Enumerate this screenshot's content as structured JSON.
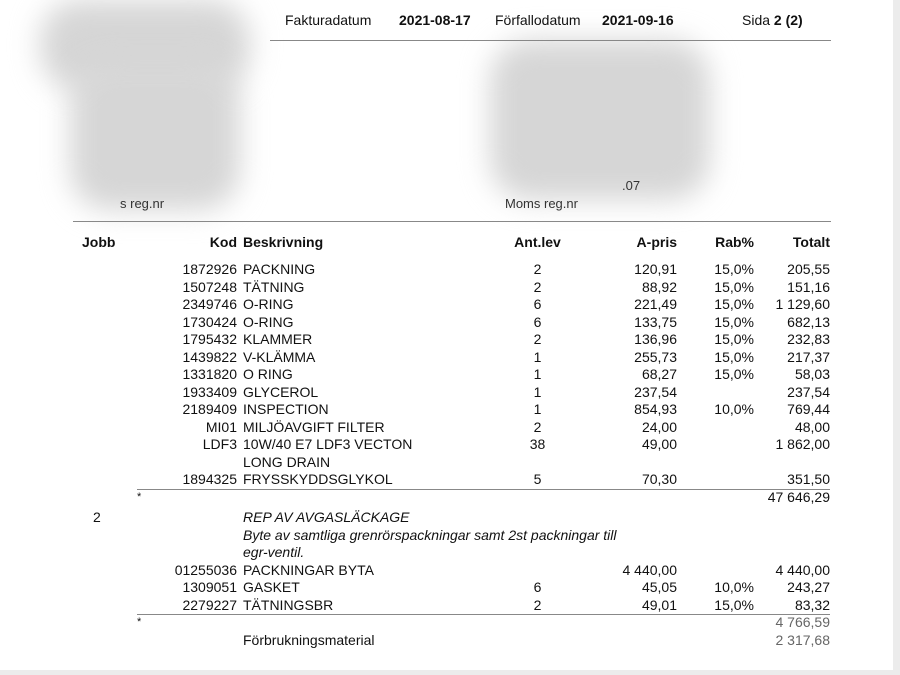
{
  "header": {
    "invoice_date_label": "Fakturadatum",
    "invoice_date": "2021-08-17",
    "due_date_label": "Förfallodatum",
    "due_date": "2021-09-16",
    "page_label": "Sida",
    "page_value": "2 (2)"
  },
  "fragments": {
    "left_reg": "s reg.nr",
    "right_reg": "Moms reg.nr",
    "right_num": ".07"
  },
  "columns": {
    "jobb": "Jobb",
    "kod": "Kod",
    "desc": "Beskrivning",
    "ant": "Ant.lev",
    "apris": "A-pris",
    "rab": "Rab%",
    "tot": "Totalt"
  },
  "rows": [
    {
      "kod": "1872926",
      "desc": "PACKNING",
      "ant": "2",
      "apris": "120,91",
      "rab": "15,0%",
      "tot": "205,55"
    },
    {
      "kod": "1507248",
      "desc": "TÄTNING",
      "ant": "2",
      "apris": "88,92",
      "rab": "15,0%",
      "tot": "151,16"
    },
    {
      "kod": "2349746",
      "desc": "O-RING",
      "ant": "6",
      "apris": "221,49",
      "rab": "15,0%",
      "tot": "1 129,60"
    },
    {
      "kod": "1730424",
      "desc": "O-RING",
      "ant": "6",
      "apris": "133,75",
      "rab": "15,0%",
      "tot": "682,13"
    },
    {
      "kod": "1795432",
      "desc": "KLAMMER",
      "ant": "2",
      "apris": "136,96",
      "rab": "15,0%",
      "tot": "232,83"
    },
    {
      "kod": "1439822",
      "desc": "V-KLÄMMA",
      "ant": "1",
      "apris": "255,73",
      "rab": "15,0%",
      "tot": "217,37"
    },
    {
      "kod": "1331820",
      "desc": "O RING",
      "ant": "1",
      "apris": "68,27",
      "rab": "15,0%",
      "tot": "58,03"
    },
    {
      "kod": "1933409",
      "desc": "GLYCEROL",
      "ant": "1",
      "apris": "237,54",
      "rab": "",
      "tot": "237,54"
    },
    {
      "kod": "2189409",
      "desc": "INSPECTION",
      "ant": "1",
      "apris": "854,93",
      "rab": "10,0%",
      "tot": "769,44"
    },
    {
      "kod": "MI01",
      "desc": "MILJÖAVGIFT FILTER",
      "ant": "2",
      "apris": "24,00",
      "rab": "",
      "tot": "48,00"
    },
    {
      "kod": "LDF3",
      "desc": "10W/40 E7 LDF3 VECTON",
      "ant": "38",
      "apris": "49,00",
      "rab": "",
      "tot": "1 862,00"
    },
    {
      "kod": "",
      "desc": "LONG DRAIN",
      "ant": "",
      "apris": "",
      "rab": "",
      "tot": ""
    },
    {
      "kod": "1894325",
      "desc": "FRYSSKYDDSGLYKOL",
      "ant": "5",
      "apris": "70,30",
      "rab": "",
      "tot": "351,50"
    }
  ],
  "subtotal1": {
    "star": "*",
    "tot": "47 646,29"
  },
  "job2": {
    "jobb": "2",
    "title": "REP AV AVGASLÄCKAGE",
    "note1": "Byte av samtliga grenrörspackningar samt 2st packningar till",
    "note2": "egr-ventil."
  },
  "rows2": [
    {
      "kod": "01255036",
      "desc": "PACKNINGAR BYTA",
      "ant": "",
      "apris": "4 440,00",
      "rab": "",
      "tot": "4 440,00"
    },
    {
      "kod": "1309051",
      "desc": "GASKET",
      "ant": "6",
      "apris": "45,05",
      "rab": "10,0%",
      "tot": "243,27"
    },
    {
      "kod": "2279227",
      "desc": "TÄTNINGSBR",
      "ant": "2",
      "apris": "49,01",
      "rab": "15,0%",
      "tot": "83,32"
    }
  ],
  "subtotal2": {
    "star": "*",
    "tot": "4 766,59"
  },
  "consumables": {
    "label": "Förbrukningsmaterial",
    "tot": "2 317,68"
  }
}
